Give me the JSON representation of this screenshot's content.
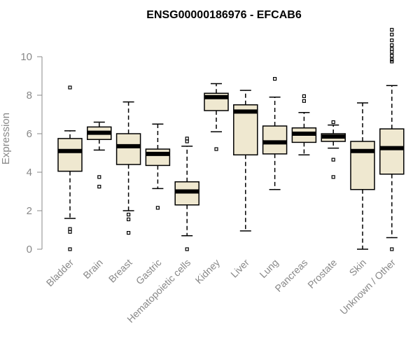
{
  "chart_data": {
    "type": "box",
    "title": "ENSG00000186976 - EFCAB6",
    "xlabel": "",
    "ylabel": "Expression",
    "ylim": [
      0,
      11.5
    ],
    "yticks": [
      0,
      2,
      4,
      6,
      8,
      10
    ],
    "grid": false,
    "box_color": "#efe8d0",
    "categories": [
      "Bladder",
      "Brain",
      "Breast",
      "Gastric",
      "Hematopoietic cells",
      "Kidney",
      "Liver",
      "Lung",
      "Pancreas",
      "Prostate",
      "Skin",
      "Unknown / Other"
    ],
    "boxes": [
      {
        "min": 1.6,
        "q1": 4.05,
        "median": 5.1,
        "q3": 5.75,
        "max": 6.15,
        "outliers": [
          8.4,
          1.05,
          0.9,
          0.0
        ]
      },
      {
        "min": 5.15,
        "q1": 5.7,
        "median": 6.05,
        "q3": 6.35,
        "max": 6.6,
        "outliers": [
          3.75,
          3.25
        ]
      },
      {
        "min": 2.0,
        "q1": 4.4,
        "median": 5.35,
        "q3": 6.0,
        "max": 7.65,
        "outliers": [
          1.8,
          1.55,
          0.85
        ]
      },
      {
        "min": 3.15,
        "q1": 4.35,
        "median": 4.95,
        "q3": 5.2,
        "max": 6.5,
        "outliers": [
          2.15
        ]
      },
      {
        "min": 0.7,
        "q1": 2.3,
        "median": 3.0,
        "q3": 3.5,
        "max": 5.35,
        "outliers": [
          5.75,
          5.6,
          0.0
        ]
      },
      {
        "min": 6.1,
        "q1": 7.2,
        "median": 7.9,
        "q3": 8.1,
        "max": 8.6,
        "outliers": [
          5.2
        ]
      },
      {
        "min": 0.95,
        "q1": 4.9,
        "median": 7.15,
        "q3": 7.5,
        "max": 8.25,
        "outliers": []
      },
      {
        "min": 3.1,
        "q1": 4.95,
        "median": 5.55,
        "q3": 6.4,
        "max": 7.9,
        "outliers": [
          8.85
        ]
      },
      {
        "min": 4.9,
        "q1": 5.55,
        "median": 6.0,
        "q3": 6.3,
        "max": 7.1,
        "outliers": [
          7.95,
          7.7
        ]
      },
      {
        "min": 5.25,
        "q1": 5.6,
        "median": 5.85,
        "q3": 6.0,
        "max": 6.45,
        "outliers": [
          6.6,
          4.65,
          3.75
        ]
      },
      {
        "min": 0.0,
        "q1": 3.1,
        "median": 5.1,
        "q3": 5.6,
        "max": 7.6,
        "outliers": []
      },
      {
        "min": 0.6,
        "q1": 3.9,
        "median": 5.25,
        "q3": 6.25,
        "max": 8.5,
        "outliers": [
          11.4,
          11.15,
          10.85,
          10.6,
          10.4,
          10.25,
          10.05,
          9.85,
          9.75,
          0.0
        ]
      }
    ]
  }
}
